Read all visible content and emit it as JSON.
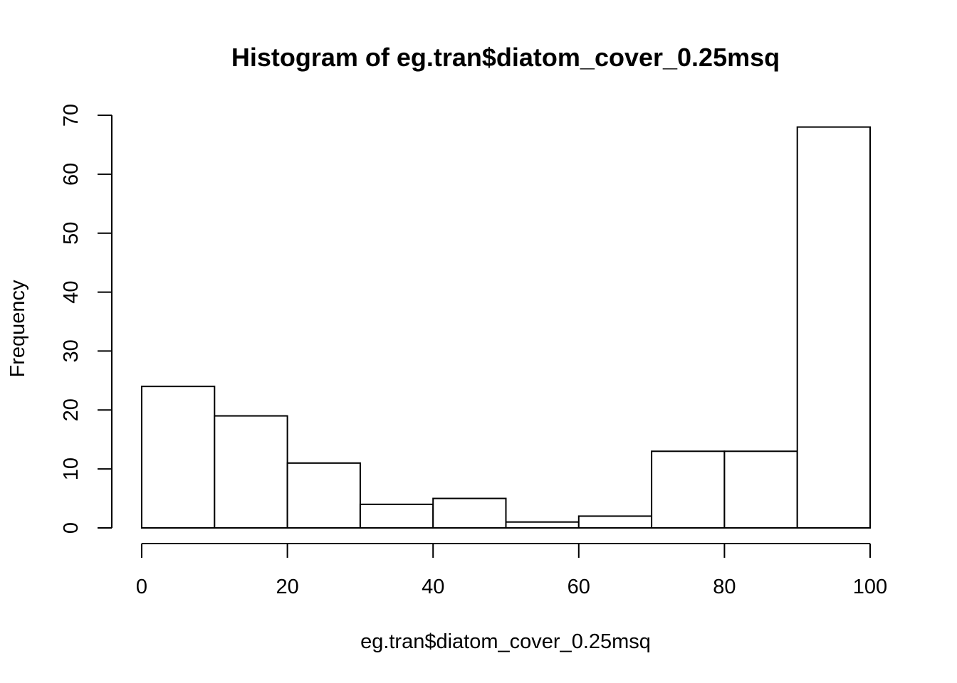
{
  "chart_data": {
    "type": "bar",
    "title": "Histogram of eg.tran$diatom_cover_0.25msq",
    "xlabel": "eg.tran$diatom_cover_0.25msq",
    "ylabel": "Frequency",
    "bins": [
      {
        "start": 0,
        "end": 10,
        "count": 24
      },
      {
        "start": 10,
        "end": 20,
        "count": 19
      },
      {
        "start": 20,
        "end": 30,
        "count": 11
      },
      {
        "start": 30,
        "end": 40,
        "count": 4
      },
      {
        "start": 40,
        "end": 50,
        "count": 5
      },
      {
        "start": 50,
        "end": 60,
        "count": 1
      },
      {
        "start": 60,
        "end": 70,
        "count": 2
      },
      {
        "start": 70,
        "end": 80,
        "count": 13
      },
      {
        "start": 80,
        "end": 90,
        "count": 13
      },
      {
        "start": 90,
        "end": 100,
        "count": 68
      }
    ],
    "xlim": [
      0,
      100
    ],
    "ylim": [
      0,
      70
    ],
    "xticks": [
      0,
      20,
      40,
      60,
      80,
      100
    ],
    "yticks": [
      0,
      10,
      20,
      30,
      40,
      50,
      60,
      70
    ],
    "grid": false,
    "legend": "none",
    "bar_fill": "#ffffff",
    "bar_stroke": "#000000"
  }
}
